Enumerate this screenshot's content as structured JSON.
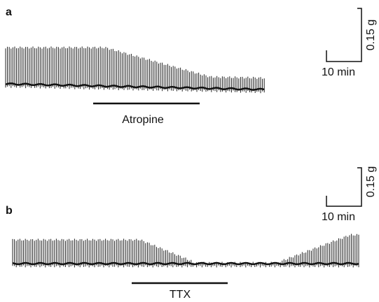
{
  "panels": [
    {
      "label": "a",
      "treatment": "Atropine",
      "scale_force": "0.15 g",
      "scale_time": "10 min"
    },
    {
      "label": "b",
      "treatment": "TTX",
      "scale_force": "0.15 g",
      "scale_time": "10 min"
    }
  ]
}
